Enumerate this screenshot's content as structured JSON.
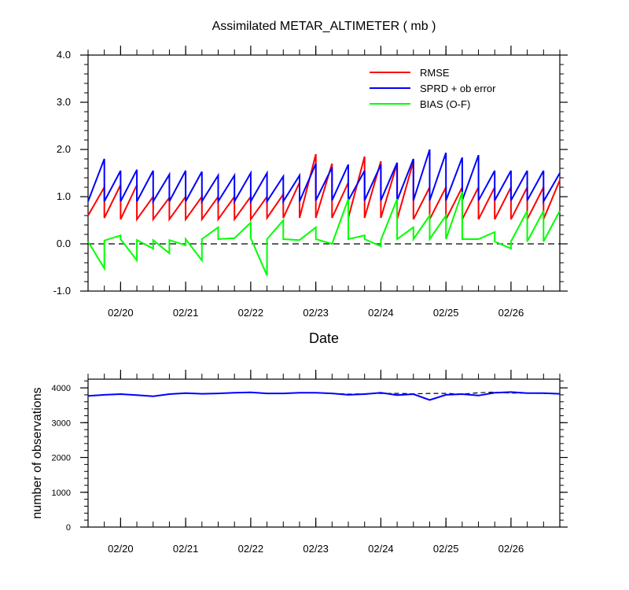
{
  "chart_data": [
    {
      "type": "line",
      "title": "Assimilated METAR_ALTIMETER ( mb )",
      "xlabel": "Date",
      "ylabel": "",
      "ylim": [
        -1.0,
        4.0
      ],
      "yticks": [
        -1.0,
        0.0,
        1.0,
        2.0,
        3.0,
        4.0
      ],
      "ytick_labels": [
        "-1.0",
        "0.0",
        "1.0",
        "2.0",
        "3.0",
        "4.0"
      ],
      "xticks": [
        1,
        2,
        3,
        4,
        5,
        6,
        7
      ],
      "xtick_labels": [
        "02/20",
        "02/21",
        "02/22",
        "02/23",
        "02/24",
        "02/25",
        "02/26"
      ],
      "xlim": [
        0.5,
        7.75
      ],
      "grid": false,
      "legend": "top-right",
      "reference_line": 0,
      "series": [
        {
          "name": "RMSE",
          "color": "#ff0000",
          "x": [
            0.5,
            0.75,
            0.75,
            1.0,
            1.0,
            1.25,
            1.25,
            1.5,
            1.5,
            1.75,
            1.75,
            2.0,
            2.0,
            2.25,
            2.25,
            2.5,
            2.5,
            2.75,
            2.75,
            3.0,
            3.0,
            3.25,
            3.25,
            3.5,
            3.5,
            3.75,
            3.75,
            4.0,
            4.0,
            4.25,
            4.25,
            4.5,
            4.5,
            4.75,
            4.75,
            5.0,
            5.0,
            5.25,
            5.25,
            5.5,
            5.5,
            5.75,
            5.75,
            6.0,
            6.0,
            6.25,
            6.25,
            6.5,
            6.5,
            6.75,
            6.75,
            7.0,
            7.0,
            7.25,
            7.25,
            7.5,
            7.5,
            7.75
          ],
          "y": [
            0.6,
            1.2,
            0.55,
            1.25,
            0.52,
            1.25,
            0.52,
            1.0,
            0.52,
            0.98,
            0.52,
            1.0,
            0.52,
            1.0,
            0.52,
            1.0,
            0.52,
            1.0,
            0.52,
            1.0,
            0.52,
            1.0,
            0.55,
            1.05,
            0.55,
            1.3,
            0.55,
            1.9,
            0.55,
            1.7,
            0.55,
            1.3,
            0.55,
            1.85,
            0.55,
            1.75,
            0.55,
            1.7,
            0.52,
            1.75,
            0.52,
            1.2,
            0.52,
            1.2,
            0.52,
            1.2,
            0.52,
            1.2,
            0.52,
            1.2,
            0.52,
            1.2,
            0.52,
            1.2,
            0.52,
            1.2,
            0.52,
            1.35
          ]
        },
        {
          "name": "SPRD + ob error",
          "color": "#0000ff",
          "x": [
            0.5,
            0.75,
            0.75,
            1.0,
            1.0,
            1.25,
            1.25,
            1.5,
            1.5,
            1.75,
            1.75,
            2.0,
            2.0,
            2.25,
            2.25,
            2.5,
            2.5,
            2.75,
            2.75,
            3.0,
            3.0,
            3.25,
            3.25,
            3.5,
            3.5,
            3.75,
            3.75,
            4.0,
            4.0,
            4.25,
            4.25,
            4.5,
            4.5,
            4.75,
            4.75,
            5.0,
            5.0,
            5.25,
            5.25,
            5.5,
            5.5,
            5.75,
            5.75,
            6.0,
            6.0,
            6.25,
            6.25,
            6.5,
            6.5,
            6.75,
            6.75,
            7.0,
            7.0,
            7.25,
            7.25,
            7.5,
            7.5,
            7.75
          ],
          "y": [
            0.9,
            1.8,
            0.9,
            1.55,
            0.9,
            1.57,
            0.9,
            1.55,
            0.9,
            1.47,
            0.9,
            1.55,
            0.9,
            1.53,
            0.9,
            1.45,
            0.9,
            1.45,
            0.9,
            1.5,
            0.9,
            1.5,
            0.9,
            1.43,
            0.9,
            1.45,
            0.9,
            1.7,
            0.92,
            1.62,
            0.92,
            1.68,
            0.92,
            1.55,
            0.92,
            1.68,
            0.92,
            1.72,
            0.92,
            1.8,
            0.92,
            2.0,
            0.92,
            1.93,
            0.92,
            1.83,
            0.92,
            1.88,
            0.92,
            1.55,
            0.92,
            1.55,
            0.92,
            1.55,
            0.92,
            1.55,
            0.9,
            1.5
          ]
        },
        {
          "name": "BIAS (O-F)",
          "color": "#00ff00",
          "x": [
            0.5,
            0.75,
            0.75,
            1.0,
            1.0,
            1.25,
            1.25,
            1.5,
            1.5,
            1.75,
            1.75,
            2.0,
            2.0,
            2.25,
            2.25,
            2.5,
            2.5,
            2.75,
            2.75,
            3.0,
            3.0,
            3.25,
            3.25,
            3.5,
            3.5,
            3.75,
            3.75,
            4.0,
            4.0,
            4.25,
            4.25,
            4.5,
            4.5,
            4.75,
            4.75,
            5.0,
            5.0,
            5.25,
            5.25,
            5.5,
            5.5,
            5.75,
            5.75,
            6.0,
            6.0,
            6.25,
            6.25,
            6.5,
            6.5,
            6.75,
            6.75,
            7.0,
            7.0,
            7.25,
            7.25,
            7.5,
            7.5,
            7.75
          ],
          "y": [
            0.05,
            -0.52,
            0.07,
            0.18,
            0.1,
            -0.35,
            0.08,
            -0.1,
            0.08,
            -0.2,
            0.08,
            -0.03,
            0.1,
            -0.35,
            0.1,
            0.35,
            0.1,
            0.12,
            0.12,
            0.45,
            0.12,
            -0.67,
            0.1,
            0.5,
            0.1,
            0.08,
            0.08,
            0.35,
            0.1,
            0.0,
            0.0,
            0.95,
            0.1,
            0.18,
            0.1,
            -0.05,
            0.08,
            0.95,
            0.1,
            0.35,
            0.1,
            0.6,
            0.1,
            0.6,
            0.1,
            1.1,
            0.1,
            0.1,
            0.1,
            0.25,
            0.05,
            -0.1,
            0.05,
            0.7,
            0.05,
            0.7,
            0.05,
            0.7
          ]
        }
      ]
    },
    {
      "type": "line",
      "title": "",
      "xlabel": "",
      "ylabel": "number of observations",
      "ylim": [
        0,
        4250
      ],
      "yticks": [
        0,
        1000,
        2000,
        3000,
        4000
      ],
      "ytick_labels": [
        "0",
        "1000",
        "2000",
        "3000",
        "4000"
      ],
      "xticks": [
        1,
        2,
        3,
        4,
        5,
        6,
        7
      ],
      "xtick_labels": [
        "02/20",
        "02/21",
        "02/22",
        "02/23",
        "02/24",
        "02/25",
        "02/26"
      ],
      "xlim": [
        0.5,
        7.75
      ],
      "grid": false,
      "series": [
        {
          "name": "",
          "style": "dashed",
          "color": "#000000",
          "x": [
            0.5,
            0.75,
            1.0,
            1.25,
            1.5,
            1.75,
            2.0,
            2.25,
            2.5,
            2.75,
            3.0,
            3.25,
            3.5,
            3.75,
            4.0,
            4.25,
            4.5,
            4.75,
            5.0,
            5.25,
            5.5,
            5.75,
            6.0,
            6.25,
            6.5,
            6.75,
            7.0,
            7.25,
            7.5,
            7.75
          ],
          "y": [
            3770,
            3800,
            3820,
            3790,
            3760,
            3820,
            3850,
            3830,
            3840,
            3860,
            3870,
            3840,
            3840,
            3860,
            3860,
            3840,
            3820,
            3830,
            3840,
            3840,
            3830,
            3840,
            3840,
            3820,
            3860,
            3880,
            3850,
            3850,
            3840,
            3830
          ]
        },
        {
          "name": "",
          "style": "solid",
          "color": "#0000ff",
          "x": [
            0.5,
            0.75,
            1.0,
            1.25,
            1.5,
            1.75,
            2.0,
            2.25,
            2.5,
            2.75,
            3.0,
            3.25,
            3.5,
            3.75,
            4.0,
            4.25,
            4.5,
            4.75,
            5.0,
            5.25,
            5.5,
            5.75,
            6.0,
            6.25,
            6.5,
            6.75,
            7.0,
            7.25,
            7.5,
            7.75
          ],
          "y": [
            3770,
            3800,
            3820,
            3790,
            3760,
            3820,
            3850,
            3830,
            3840,
            3860,
            3870,
            3840,
            3840,
            3860,
            3860,
            3840,
            3800,
            3820,
            3860,
            3790,
            3820,
            3650,
            3800,
            3820,
            3780,
            3860,
            3880,
            3850,
            3850,
            3830
          ]
        }
      ]
    }
  ]
}
